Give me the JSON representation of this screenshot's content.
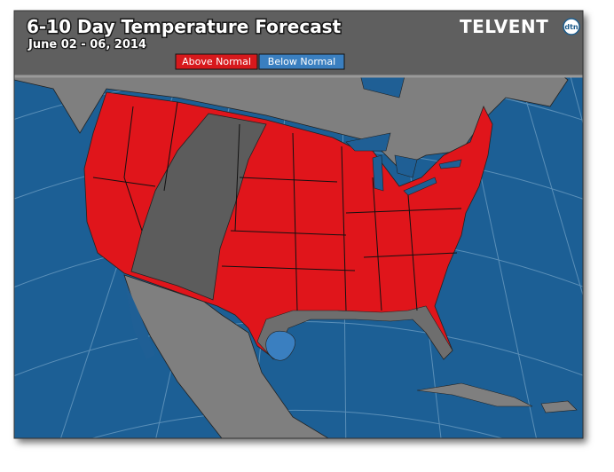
{
  "header": {
    "title": "6-10 Day Temperature Forecast",
    "subtitle": "June 02 - 06, 2014"
  },
  "legend": [
    {
      "label": "Above Normal",
      "color": "#d7191c"
    },
    {
      "label": "Below Normal",
      "color": "#3a7fc0"
    }
  ],
  "logo": {
    "text": "TELVENT",
    "badge": "dtn"
  }
}
